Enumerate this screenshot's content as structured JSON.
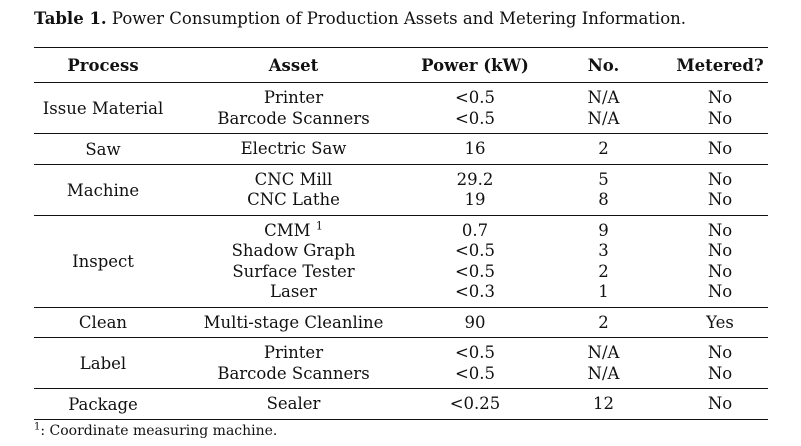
{
  "caption": {
    "label": "Table 1.",
    "text": " Power Consumption of Production Assets and Metering Information."
  },
  "headers": {
    "process": "Process",
    "asset": "Asset",
    "power": "Power (kW)",
    "no": "No.",
    "metered": "Metered?"
  },
  "groups": [
    {
      "process": "Issue Material",
      "assets": [
        {
          "asset": "Printer",
          "power": "<0.5",
          "no": "N/A",
          "metered": "No"
        },
        {
          "asset": "Barcode Scanners",
          "power": "<0.5",
          "no": "N/A",
          "metered": "No"
        }
      ]
    },
    {
      "process": "Saw",
      "assets": [
        {
          "asset": "Electric Saw",
          "power": "16",
          "no": "2",
          "metered": "No"
        }
      ]
    },
    {
      "process": "Machine",
      "assets": [
        {
          "asset": "CNC Mill",
          "power": "29.2",
          "no": "5",
          "metered": "No"
        },
        {
          "asset": "CNC Lathe",
          "power": "19",
          "no": "8",
          "metered": "No"
        }
      ]
    },
    {
      "process": "Inspect",
      "assets": [
        {
          "asset": "CMM",
          "footnote_mark": "1",
          "power": "0.7",
          "no": "9",
          "metered": "No"
        },
        {
          "asset": "Shadow Graph",
          "power": "<0.5",
          "no": "3",
          "metered": "No"
        },
        {
          "asset": "Surface Tester",
          "power": "<0.5",
          "no": "2",
          "metered": "No"
        },
        {
          "asset": "Laser",
          "power": "<0.3",
          "no": "1",
          "metered": "No"
        }
      ]
    },
    {
      "process": "Clean",
      "assets": [
        {
          "asset": "Multi-stage Cleanline",
          "power": "90",
          "no": "2",
          "metered": "Yes"
        }
      ]
    },
    {
      "process": "Label",
      "assets": [
        {
          "asset": "Printer",
          "power": "<0.5",
          "no": "N/A",
          "metered": "No"
        },
        {
          "asset": "Barcode Scanners",
          "power": "<0.5",
          "no": "N/A",
          "metered": "No"
        }
      ]
    },
    {
      "process": "Package",
      "assets": [
        {
          "asset": "Sealer",
          "power": "<0.25",
          "no": "12",
          "metered": "No"
        }
      ]
    }
  ],
  "footnote": {
    "mark": "1",
    "text": ": Coordinate measuring machine."
  }
}
